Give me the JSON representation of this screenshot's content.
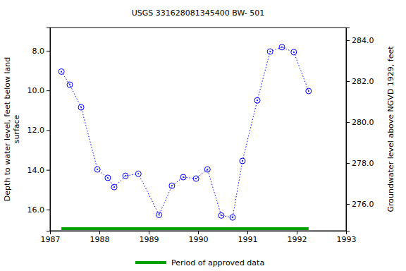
{
  "chart_data": {
    "type": "line",
    "title": "USGS 331628081345400 BW- 501",
    "ylabel": [
      "Depth to water level, feet below land",
      "surface"
    ],
    "y2label": "Groundwater level above NGVD 1929, feet",
    "x": [
      1987.23,
      1987.4,
      1987.63,
      1987.96,
      1988.17,
      1988.3,
      1988.53,
      1988.79,
      1989.21,
      1989.47,
      1989.7,
      1989.96,
      1990.19,
      1990.47,
      1990.7,
      1990.9,
      1991.2,
      1991.46,
      1991.7,
      1991.94,
      1992.24
    ],
    "series": [
      {
        "color": "#0000ff",
        "marker": "circle",
        "line_style": "dotted",
        "values": [
          9.05,
          9.71,
          10.85,
          13.98,
          14.4,
          14.87,
          14.3,
          14.2,
          16.27,
          14.8,
          14.37,
          14.44,
          13.98,
          16.3,
          16.4,
          13.55,
          10.5,
          8.04,
          7.82,
          8.07,
          10.03
        ]
      }
    ],
    "approved": {
      "name": "Period of approved data",
      "color": "#00a000",
      "x": [
        1987.23,
        1992.24
      ]
    },
    "xlim": [
      1987,
      1993
    ],
    "xticks": [
      1987,
      1988,
      1989,
      1990,
      1991,
      1992,
      1993
    ],
    "ylim": [
      17.07,
      6.83
    ],
    "yticks": [
      {
        "value": 8,
        "label": "8.0"
      },
      {
        "value": 10,
        "label": "10.0"
      },
      {
        "value": 12,
        "label": "12.0"
      },
      {
        "value": 14,
        "label": "14.0"
      },
      {
        "value": 16,
        "label": "16.0"
      }
    ],
    "y2lim": [
      274.69,
      284.62
    ],
    "y2ticks": [
      {
        "value": 276,
        "label": "276.0"
      },
      {
        "value": 278,
        "label": "278.0"
      },
      {
        "value": 280,
        "label": "280.0"
      },
      {
        "value": 282,
        "label": "282.0"
      },
      {
        "value": 284,
        "label": "284.0"
      }
    ],
    "legend": "bottom",
    "grid": false
  }
}
